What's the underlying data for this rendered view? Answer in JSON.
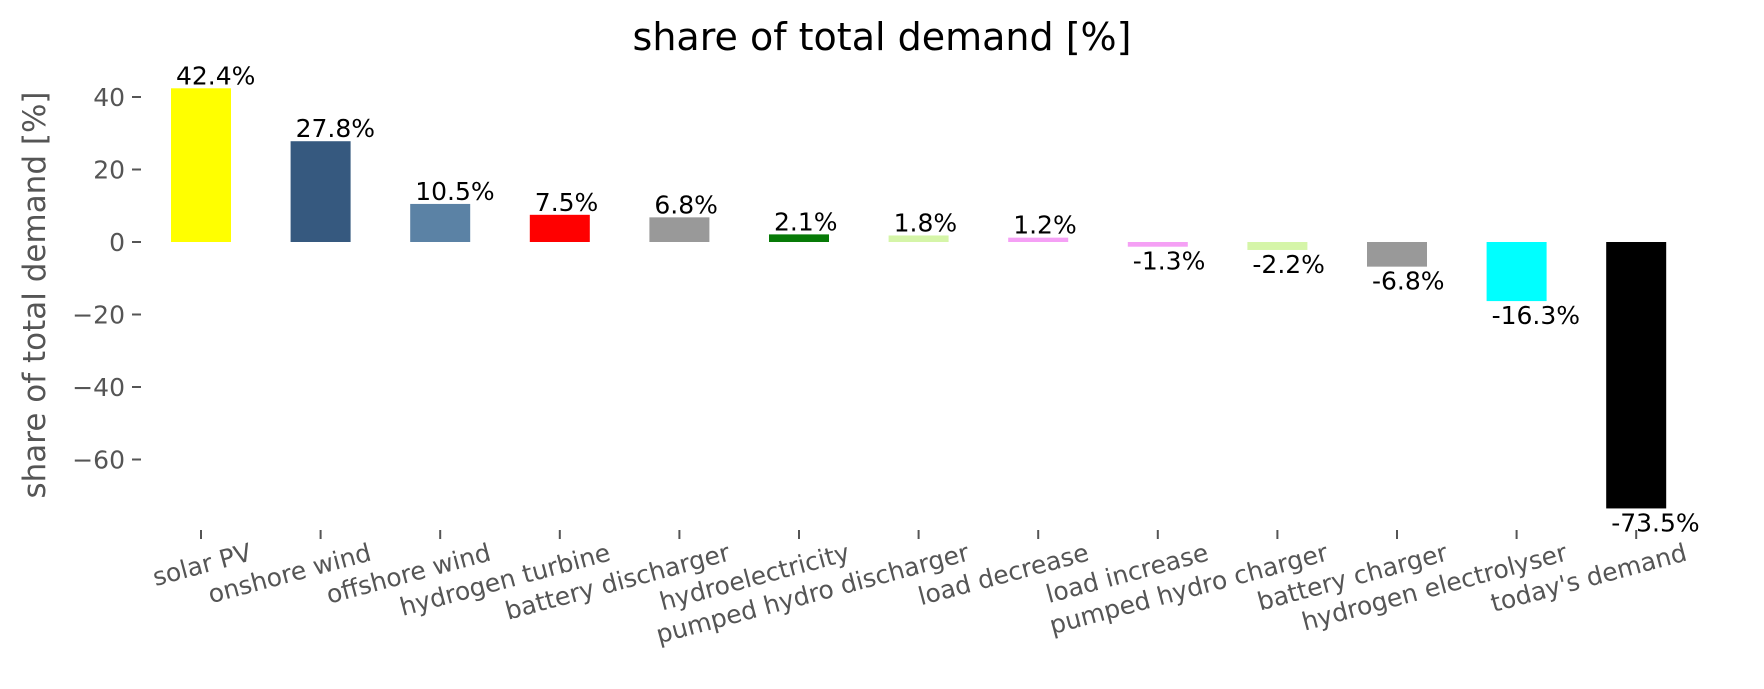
{
  "chart_data": {
    "type": "bar",
    "title": "share of total demand [%]",
    "xlabel": "",
    "ylabel": "share of total demand [%]",
    "ylim": [
      -80,
      46
    ],
    "yticks": [
      40,
      20,
      0,
      -20,
      -40,
      -60
    ],
    "ytick_labels": [
      "40",
      "20",
      "0",
      "−20",
      "−40",
      "−60"
    ],
    "grid": false,
    "categories": [
      "solar PV",
      "onshore wind",
      "offshore wind",
      "hydrogen turbine",
      "battery discharger",
      "hydroelectricity",
      "pumped hydro discharger",
      "load decrease",
      "load increase",
      "pumped hydro charger",
      "battery charger",
      "hydrogen electrolyser",
      "today's demand"
    ],
    "values": [
      42.4,
      27.8,
      10.5,
      7.5,
      6.8,
      2.1,
      1.8,
      1.2,
      -1.3,
      -2.2,
      -6.8,
      -16.3,
      -73.5
    ],
    "labels": [
      "42.4%",
      "27.8%",
      "10.5%",
      "7.5%",
      "6.8%",
      "2.1%",
      "1.8%",
      "1.2%",
      "-1.3%",
      "-2.2%",
      "-6.8%",
      "-16.3%",
      "-73.5%"
    ],
    "colors": [
      "#ffff00",
      "#36597f",
      "#5b82a5",
      "#ff0000",
      "#999999",
      "#077a07",
      "#d5f5a8",
      "#f5a0f5",
      "#f5a0f5",
      "#d5f5a8",
      "#999999",
      "#00ffff",
      "#000000"
    ]
  }
}
